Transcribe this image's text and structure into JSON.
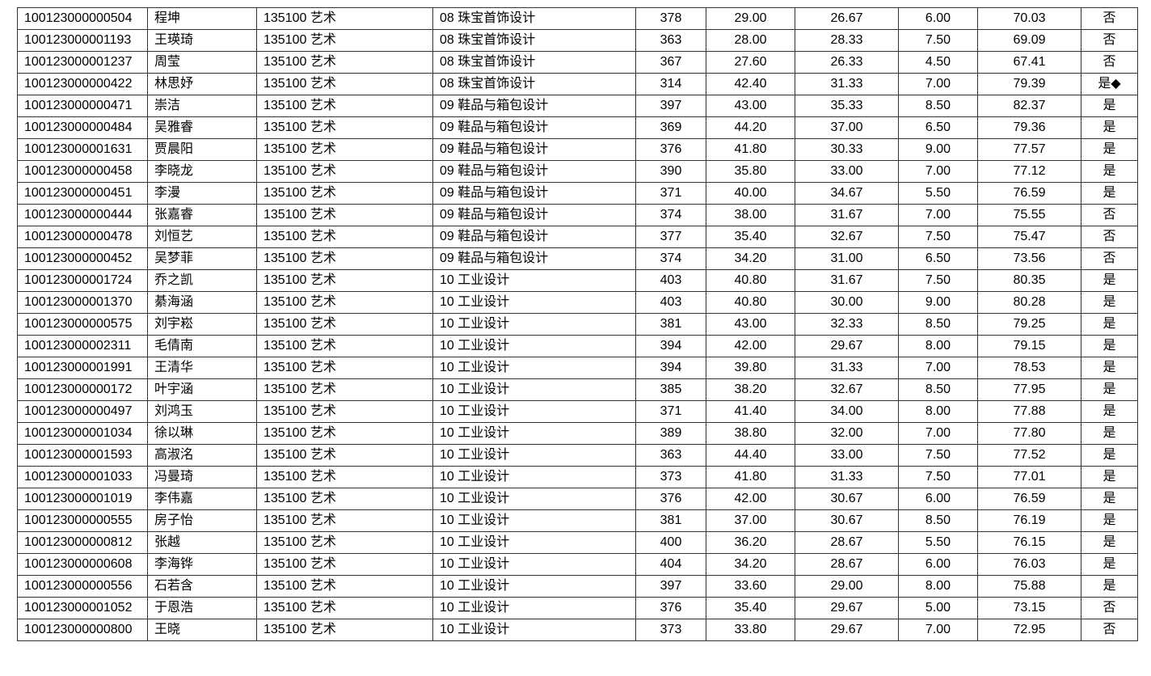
{
  "table": {
    "rows": [
      [
        "100123000000504",
        "程坤",
        "135100 艺术",
        "08 珠宝首饰设计",
        "378",
        "29.00",
        "26.67",
        "6.00",
        "70.03",
        "否"
      ],
      [
        "100123000001193",
        "王瑛琦",
        "135100 艺术",
        "08 珠宝首饰设计",
        "363",
        "28.00",
        "28.33",
        "7.50",
        "69.09",
        "否"
      ],
      [
        "100123000001237",
        "周莹",
        "135100 艺术",
        "08 珠宝首饰设计",
        "367",
        "27.60",
        "26.33",
        "4.50",
        "67.41",
        "否"
      ],
      [
        "100123000000422",
        "林思妤",
        "135100 艺术",
        "08 珠宝首饰设计",
        "314",
        "42.40",
        "31.33",
        "7.00",
        "79.39",
        "是◆"
      ],
      [
        "100123000000471",
        "崇洁",
        "135100 艺术",
        "09 鞋品与箱包设计",
        "397",
        "43.00",
        "35.33",
        "8.50",
        "82.37",
        "是"
      ],
      [
        "100123000000484",
        "吴雅睿",
        "135100 艺术",
        "09 鞋品与箱包设计",
        "369",
        "44.20",
        "37.00",
        "6.50",
        "79.36",
        "是"
      ],
      [
        "100123000001631",
        "贾晨阳",
        "135100 艺术",
        "09 鞋品与箱包设计",
        "376",
        "41.80",
        "30.33",
        "9.00",
        "77.57",
        "是"
      ],
      [
        "100123000000458",
        "李晓龙",
        "135100 艺术",
        "09 鞋品与箱包设计",
        "390",
        "35.80",
        "33.00",
        "7.00",
        "77.12",
        "是"
      ],
      [
        "100123000000451",
        "李漫",
        "135100 艺术",
        "09 鞋品与箱包设计",
        "371",
        "40.00",
        "34.67",
        "5.50",
        "76.59",
        "是"
      ],
      [
        "100123000000444",
        "张嘉睿",
        "135100 艺术",
        "09 鞋品与箱包设计",
        "374",
        "38.00",
        "31.67",
        "7.00",
        "75.55",
        "否"
      ],
      [
        "100123000000478",
        "刘恒艺",
        "135100 艺术",
        "09 鞋品与箱包设计",
        "377",
        "35.40",
        "32.67",
        "7.50",
        "75.47",
        "否"
      ],
      [
        "100123000000452",
        "吴梦菲",
        "135100 艺术",
        "09 鞋品与箱包设计",
        "374",
        "34.20",
        "31.00",
        "6.50",
        "73.56",
        "否"
      ],
      [
        "100123000001724",
        "乔之凯",
        "135100 艺术",
        "10 工业设计",
        "403",
        "40.80",
        "31.67",
        "7.50",
        "80.35",
        "是"
      ],
      [
        "100123000001370",
        "綦海涵",
        "135100 艺术",
        "10 工业设计",
        "403",
        "40.80",
        "30.00",
        "9.00",
        "80.28",
        "是"
      ],
      [
        "100123000000575",
        "刘宇崧",
        "135100 艺术",
        "10 工业设计",
        "381",
        "43.00",
        "32.33",
        "8.50",
        "79.25",
        "是"
      ],
      [
        "100123000002311",
        "毛倩南",
        "135100 艺术",
        "10 工业设计",
        "394",
        "42.00",
        "29.67",
        "8.00",
        "79.15",
        "是"
      ],
      [
        "100123000001991",
        "王清华",
        "135100 艺术",
        "10 工业设计",
        "394",
        "39.80",
        "31.33",
        "7.00",
        "78.53",
        "是"
      ],
      [
        "100123000000172",
        "叶宇涵",
        "135100 艺术",
        "10 工业设计",
        "385",
        "38.20",
        "32.67",
        "8.50",
        "77.95",
        "是"
      ],
      [
        "100123000000497",
        "刘鸿玉",
        "135100 艺术",
        "10 工业设计",
        "371",
        "41.40",
        "34.00",
        "8.00",
        "77.88",
        "是"
      ],
      [
        "100123000001034",
        "徐以琳",
        "135100 艺术",
        "10 工业设计",
        "389",
        "38.80",
        "32.00",
        "7.00",
        "77.80",
        "是"
      ],
      [
        "100123000001593",
        "高淑洺",
        "135100 艺术",
        "10 工业设计",
        "363",
        "44.40",
        "33.00",
        "7.50",
        "77.52",
        "是"
      ],
      [
        "100123000001033",
        "冯曼琦",
        "135100 艺术",
        "10 工业设计",
        "373",
        "41.80",
        "31.33",
        "7.50",
        "77.01",
        "是"
      ],
      [
        "100123000001019",
        "李伟嘉",
        "135100 艺术",
        "10 工业设计",
        "376",
        "42.00",
        "30.67",
        "6.00",
        "76.59",
        "是"
      ],
      [
        "100123000000555",
        "房子怡",
        "135100 艺术",
        "10 工业设计",
        "381",
        "37.00",
        "30.67",
        "8.50",
        "76.19",
        "是"
      ],
      [
        "100123000000812",
        "张越",
        "135100 艺术",
        "10 工业设计",
        "400",
        "36.20",
        "28.67",
        "5.50",
        "76.15",
        "是"
      ],
      [
        "100123000000608",
        "李海铧",
        "135100 艺术",
        "10 工业设计",
        "404",
        "34.20",
        "28.67",
        "6.00",
        "76.03",
        "是"
      ],
      [
        "100123000000556",
        "石若含",
        "135100 艺术",
        "10 工业设计",
        "397",
        "33.60",
        "29.00",
        "8.00",
        "75.88",
        "是"
      ],
      [
        "100123000001052",
        "于恩浩",
        "135100 艺术",
        "10 工业设计",
        "376",
        "35.40",
        "29.67",
        "5.00",
        "73.15",
        "否"
      ],
      [
        "100123000000800",
        "王晓",
        "135100 艺术",
        "10 工业设计",
        "373",
        "33.80",
        "29.67",
        "7.00",
        "72.95",
        "否"
      ]
    ]
  }
}
